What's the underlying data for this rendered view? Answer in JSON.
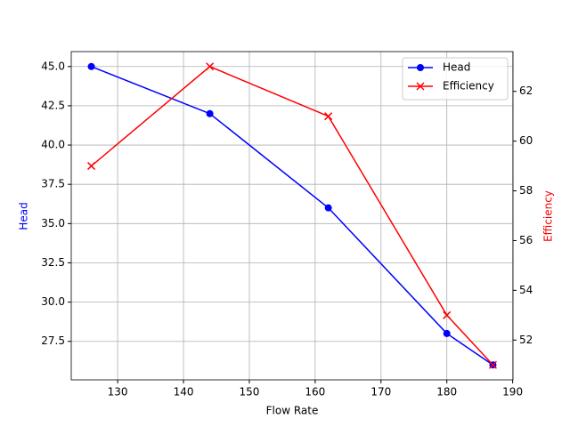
{
  "chart_data": {
    "type": "line",
    "x": [
      126,
      144,
      162,
      180,
      187
    ],
    "xlabel": "Flow Rate",
    "ylabel": "Head",
    "y2label": "Efficiency",
    "series": [
      {
        "name": "Head",
        "color": "#0000ff",
        "marker": "o",
        "values": [
          45,
          42,
          36,
          28,
          26
        ]
      },
      {
        "name": "Efficiency",
        "color": "#ff0000",
        "marker": "x",
        "axis": "y2",
        "values": [
          59,
          63,
          61,
          53,
          51
        ]
      }
    ],
    "xlim": [
      122.95,
      190.05
    ],
    "xticks": [
      130,
      140,
      150,
      160,
      170,
      180,
      190
    ],
    "ylim": [
      25.05,
      45.95
    ],
    "yticks": [
      {
        "value": 27.5,
        "label": "27.5"
      },
      {
        "value": 30,
        "label": "30.0"
      },
      {
        "value": 32.5,
        "label": "32.5"
      },
      {
        "value": 35,
        "label": "35.0"
      },
      {
        "value": 37.5,
        "label": "37.5"
      },
      {
        "value": 40,
        "label": "40.0"
      },
      {
        "value": 42.5,
        "label": "42.5"
      },
      {
        "value": 45,
        "label": "45.0"
      }
    ],
    "y2lim": [
      50.4,
      63.6
    ],
    "y2ticks": [
      52,
      54,
      56,
      58,
      60,
      62
    ],
    "grid": true,
    "legend": "upper right"
  }
}
